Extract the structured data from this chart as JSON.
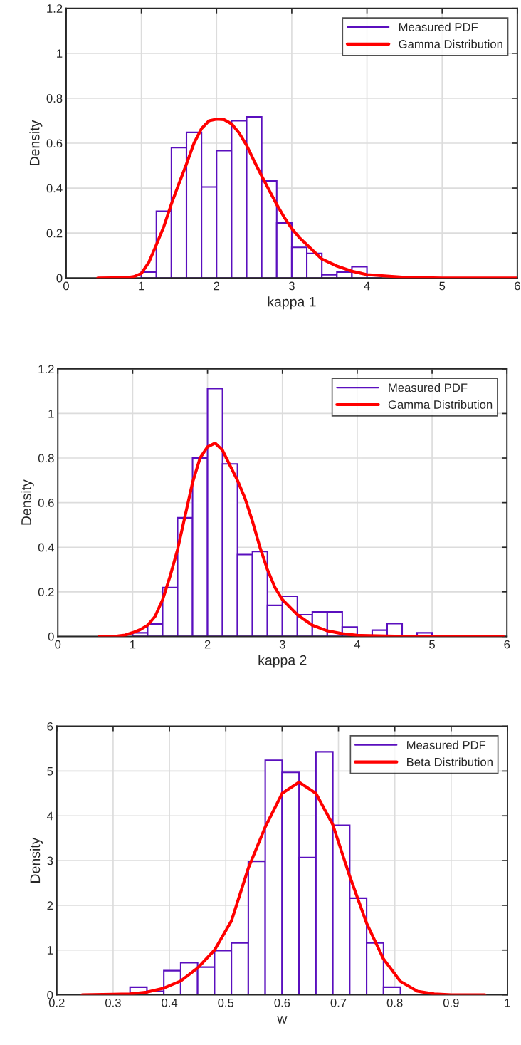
{
  "chart_data": [
    {
      "type": "histogram",
      "xlabel": "kappa 1",
      "ylabel": "Density",
      "xlim": [
        0,
        6
      ],
      "xticks": [
        0,
        1,
        2,
        3,
        4,
        5,
        6
      ],
      "ylim": [
        0,
        1.2
      ],
      "yticks": [
        0,
        0.2,
        0.4,
        0.6,
        0.8,
        1,
        1.2
      ],
      "grid": true,
      "legend": "top right",
      "series": [
        {
          "name": "Measured PDF",
          "color": "#5a0fbe",
          "bins": [
            1.0,
            1.2,
            1.4,
            1.6,
            1.8,
            2.0,
            2.2,
            2.4,
            2.6,
            2.8,
            3.0,
            3.2,
            3.4,
            3.6,
            3.8,
            4.0,
            4.2
          ],
          "values": [
            0.026,
            0.297,
            0.58,
            0.648,
            0.405,
            0.567,
            0.7,
            0.717,
            0.432,
            0.245,
            0.136,
            0.109,
            0.014,
            0.026,
            0.05,
            null
          ]
        },
        {
          "name": "Gamma Distribution",
          "type": "line",
          "color": "#ff0000",
          "x": [
            0.42,
            0.8,
            0.9,
            1.0,
            1.1,
            1.2,
            1.3,
            1.4,
            1.5,
            1.6,
            1.7,
            1.8,
            1.9,
            2.0,
            2.1,
            2.2,
            2.3,
            2.4,
            2.5,
            2.6,
            2.7,
            2.8,
            2.9,
            3.0,
            3.1,
            3.2,
            3.4,
            3.6,
            3.8,
            4.0,
            4.5,
            5.0,
            6.0
          ],
          "values": [
            0,
            0.001,
            0.006,
            0.02,
            0.07,
            0.148,
            0.23,
            0.33,
            0.42,
            0.507,
            0.6,
            0.665,
            0.7,
            0.707,
            0.705,
            0.686,
            0.645,
            0.59,
            0.52,
            0.454,
            0.39,
            0.327,
            0.27,
            0.22,
            0.18,
            0.148,
            0.084,
            0.053,
            0.03,
            0.015,
            0.003,
            0,
            0
          ]
        }
      ]
    },
    {
      "type": "histogram",
      "xlabel": "kappa 2",
      "ylabel": "Density",
      "xlim": [
        0,
        6
      ],
      "xticks": [
        0,
        1,
        2,
        3,
        4,
        5,
        6
      ],
      "ylim": [
        0,
        1.2
      ],
      "yticks": [
        0,
        0.2,
        0.4,
        0.6,
        0.8,
        1,
        1.2
      ],
      "grid": true,
      "legend": "top right",
      "series": [
        {
          "name": "Measured PDF",
          "color": "#5a0fbe",
          "bins": [
            1.0,
            1.2,
            1.4,
            1.6,
            1.8,
            2.0,
            2.2,
            2.4,
            2.6,
            2.8,
            3.0,
            3.2,
            3.4,
            3.6,
            3.8,
            4.0,
            4.2,
            4.4,
            4.6,
            4.8,
            5.0
          ],
          "values": [
            0.016,
            0.056,
            0.219,
            0.532,
            0.8,
            1.112,
            0.774,
            0.367,
            0.381,
            0.139,
            0.18,
            0.097,
            0.11,
            0.11,
            0.042,
            0,
            0.028,
            0.057,
            0,
            0.016
          ]
        },
        {
          "name": "Gamma Distribution",
          "type": "line",
          "color": "#ff0000",
          "x": [
            0.55,
            0.8,
            0.9,
            1.0,
            1.1,
            1.2,
            1.3,
            1.4,
            1.5,
            1.6,
            1.7,
            1.8,
            1.9,
            2.0,
            2.1,
            2.2,
            2.3,
            2.4,
            2.5,
            2.6,
            2.7,
            2.8,
            2.9,
            3.0,
            3.2,
            3.4,
            3.6,
            3.8,
            4.0,
            4.5,
            5.0,
            5.95
          ],
          "values": [
            0,
            0.002,
            0.006,
            0.017,
            0.03,
            0.05,
            0.09,
            0.165,
            0.27,
            0.39,
            0.54,
            0.69,
            0.8,
            0.85,
            0.867,
            0.835,
            0.767,
            0.7,
            0.62,
            0.517,
            0.4,
            0.3,
            0.22,
            0.165,
            0.097,
            0.05,
            0.025,
            0.012,
            0.005,
            0.001,
            0,
            0
          ]
        }
      ]
    },
    {
      "type": "histogram",
      "xlabel": "w",
      "ylabel": "Density",
      "xlim": [
        0.2,
        1
      ],
      "xticks": [
        0.2,
        0.3,
        0.4,
        0.5,
        0.6,
        0.7,
        0.8,
        0.9,
        1
      ],
      "ylim": [
        0,
        6
      ],
      "yticks": [
        0,
        1,
        2,
        3,
        4,
        5,
        6
      ],
      "grid": true,
      "legend": "top right",
      "series": [
        {
          "name": "Measured PDF",
          "color": "#5a0fbe",
          "bins": [
            0.33,
            0.36,
            0.39,
            0.42,
            0.45,
            0.48,
            0.51,
            0.54,
            0.57,
            0.6,
            0.63,
            0.66,
            0.69,
            0.72,
            0.75,
            0.78,
            0.81
          ],
          "values": [
            0.17,
            0.08,
            0.54,
            0.72,
            0.62,
            0.99,
            1.16,
            2.98,
            5.24,
            4.97,
            3.07,
            5.43,
            3.79,
            2.16,
            1.16,
            0.17
          ]
        },
        {
          "name": "Beta Distribution",
          "type": "line",
          "color": "#ff0000",
          "x": [
            0.245,
            0.3,
            0.33,
            0.36,
            0.39,
            0.42,
            0.45,
            0.48,
            0.51,
            0.54,
            0.57,
            0.6,
            0.63,
            0.66,
            0.69,
            0.72,
            0.75,
            0.78,
            0.81,
            0.84,
            0.87,
            0.9,
            0.96
          ],
          "values": [
            0,
            0.01,
            0.02,
            0.06,
            0.15,
            0.31,
            0.6,
            1.0,
            1.65,
            2.83,
            3.75,
            4.5,
            4.75,
            4.5,
            3.8,
            2.65,
            1.6,
            0.8,
            0.3,
            0.08,
            0.02,
            0,
            0
          ]
        }
      ]
    }
  ]
}
